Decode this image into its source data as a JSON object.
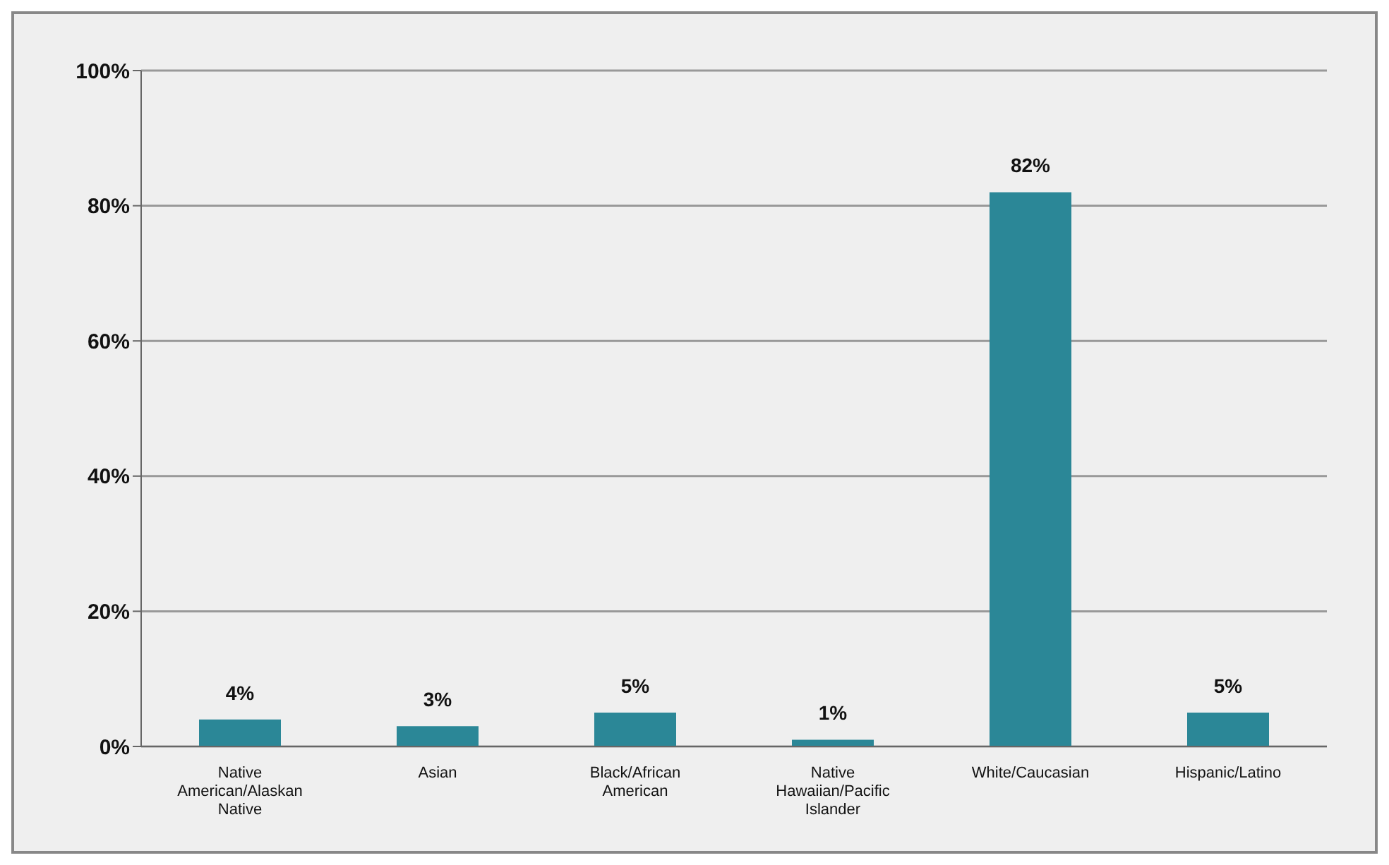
{
  "chart_data": {
    "type": "bar",
    "categories": [
      "Native American/Alaskan Native",
      "Asian",
      "Black/African American",
      "Native Hawaiian/Pacific Islander",
      "White/Caucasian",
      "Hispanic/Latino"
    ],
    "values": [
      4,
      3,
      5,
      1,
      82,
      5
    ],
    "value_labels": [
      "4%",
      "3%",
      "5%",
      "1%",
      "82%",
      "5%"
    ],
    "color": "#2b8797",
    "ylim": [
      0,
      100
    ],
    "yticks": [
      {
        "value": 0,
        "label": "0%"
      },
      {
        "value": 20,
        "label": "20%"
      },
      {
        "value": 40,
        "label": "40%"
      },
      {
        "value": 60,
        "label": "60%"
      },
      {
        "value": 80,
        "label": "80%"
      },
      {
        "value": 100,
        "label": "100%"
      }
    ],
    "grid": "y"
  }
}
